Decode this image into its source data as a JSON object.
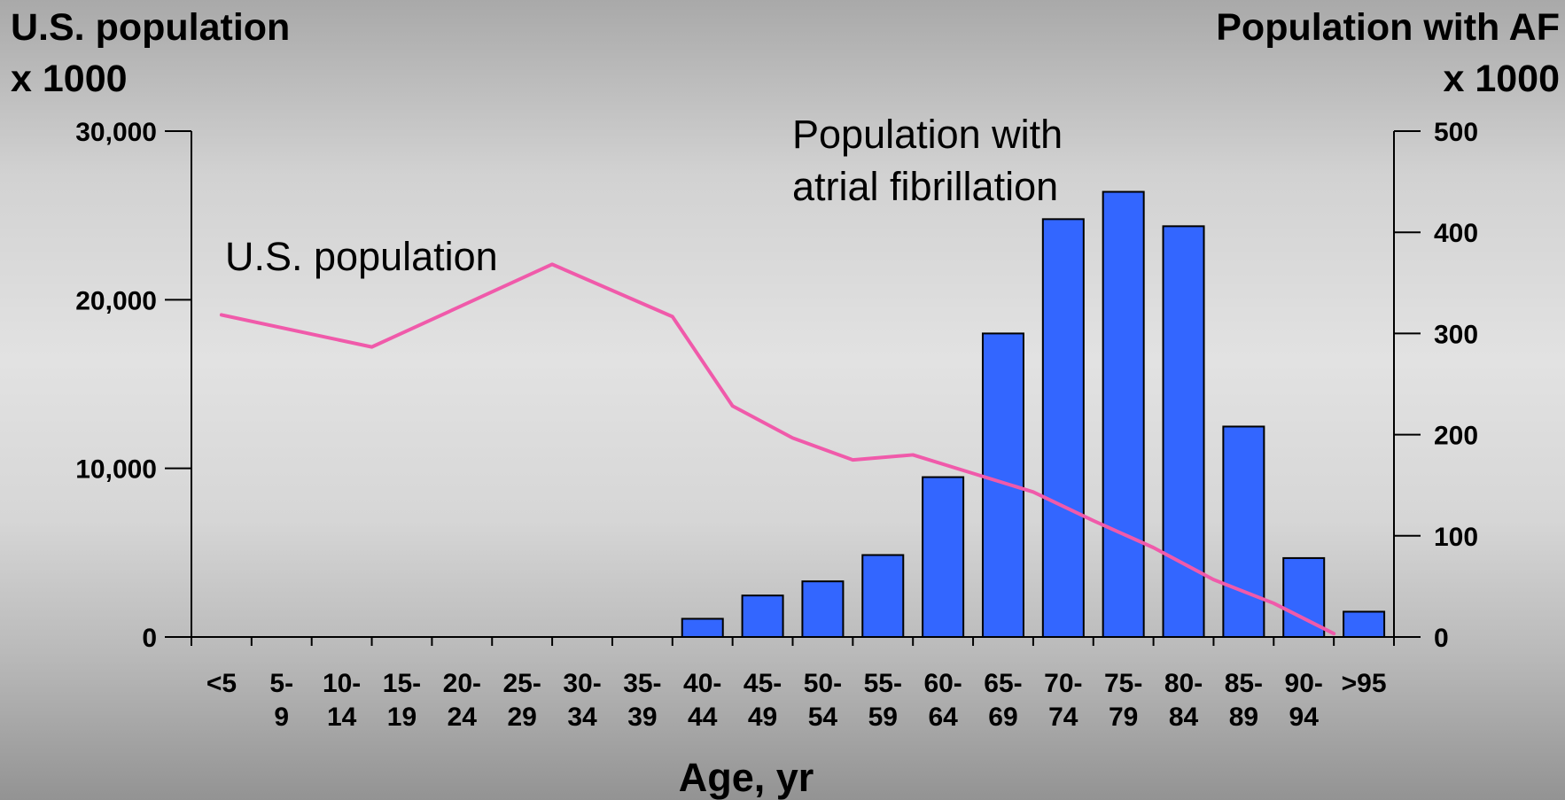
{
  "chart_data": {
    "type": "bar",
    "left_axis_title": [
      "U.S. population",
      "x 1000"
    ],
    "right_axis_title": [
      "Population with AF",
      "x 1000"
    ],
    "xlabel": "Age, yr",
    "categories": [
      [
        "<5"
      ],
      [
        "5-",
        "9"
      ],
      [
        "10-",
        "14"
      ],
      [
        "15-",
        "19"
      ],
      [
        "20-",
        "24"
      ],
      [
        "25-",
        "29"
      ],
      [
        "30-",
        "34"
      ],
      [
        "35-",
        "39"
      ],
      [
        "40-",
        "44"
      ],
      [
        "45-",
        "49"
      ],
      [
        "50-",
        "54"
      ],
      [
        "55-",
        "59"
      ],
      [
        "60-",
        "64"
      ],
      [
        "65-",
        "69"
      ],
      [
        "70-",
        "74"
      ],
      [
        "75-",
        "79"
      ],
      [
        "80-",
        "84"
      ],
      [
        "85-",
        "89"
      ],
      [
        "90-",
        "94"
      ],
      [
        ">95"
      ]
    ],
    "left_axis": {
      "min": 0,
      "max": 30000,
      "ticks": [
        0,
        10000,
        20000,
        30000
      ],
      "tick_labels": [
        "0",
        "10,000",
        "20,000",
        "30,000"
      ]
    },
    "right_axis": {
      "min": 0,
      "max": 500,
      "ticks": [
        0,
        100,
        200,
        300,
        400,
        500
      ],
      "tick_labels": [
        "0",
        "100",
        "200",
        "300",
        "400",
        "500"
      ]
    },
    "series": [
      {
        "name": "Population with atrial fibrillation",
        "kind": "bar",
        "axis": "right",
        "color": "#3366ff",
        "values": [
          0,
          0,
          0,
          0,
          0,
          0,
          0,
          0,
          18,
          41,
          55,
          81,
          158,
          300,
          413,
          440,
          406,
          208,
          78,
          25
        ]
      },
      {
        "name": "U.S. population",
        "kind": "line",
        "axis": "left",
        "color": "#f05aaa",
        "points": [
          [
            0.5,
            19100
          ],
          [
            3.0,
            17200
          ],
          [
            6.0,
            22100
          ],
          [
            8.0,
            19000
          ],
          [
            9.0,
            13700
          ],
          [
            10.0,
            11800
          ],
          [
            11.0,
            10500
          ],
          [
            12.0,
            10800
          ],
          [
            13.0,
            9700
          ],
          [
            14.0,
            8600
          ],
          [
            15.0,
            6900
          ],
          [
            16.0,
            5300
          ],
          [
            17.0,
            3400
          ],
          [
            18.0,
            2000
          ],
          [
            19.0,
            200
          ]
        ]
      }
    ],
    "annotations": {
      "line_label": "U.S. population",
      "bar_label": [
        "Population with",
        "atrial fibrillation"
      ]
    },
    "grid": false,
    "legend": "none"
  }
}
